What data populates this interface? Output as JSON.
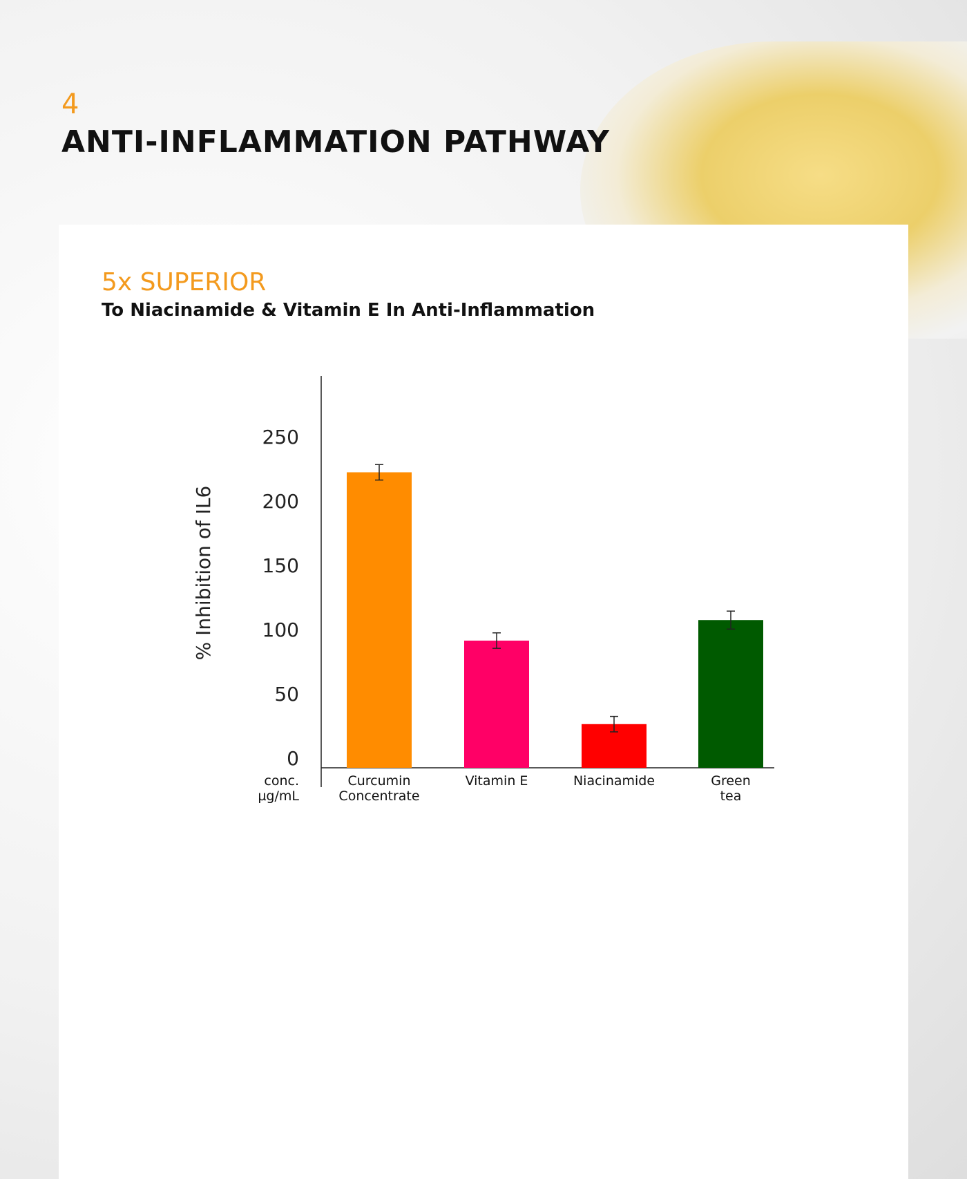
{
  "section_number": "4",
  "heading": "ANTI-INFLAMMATION PATHWAY",
  "highlight": "5x SUPERIOR",
  "subheading": "To Niacinamide & Vitamin E In Anti-Inflammation",
  "chart_data": {
    "type": "bar",
    "y_label": "% Inhibition of IL6",
    "x_label": "conc. µg/mL",
    "categories": [
      "Curcumin Concentrate",
      "Vitamin E",
      "Niacinamide",
      "Green tea"
    ],
    "values": [
      230,
      99,
      34,
      115
    ],
    "errors": [
      6,
      6,
      6,
      7
    ],
    "colors": [
      "#ff8c00",
      "#ff0066",
      "#ff0000",
      "#005a00"
    ],
    "ylim": [
      0,
      305
    ],
    "yticks": [
      0,
      50,
      100,
      150,
      200,
      250
    ],
    "grid": false
  }
}
